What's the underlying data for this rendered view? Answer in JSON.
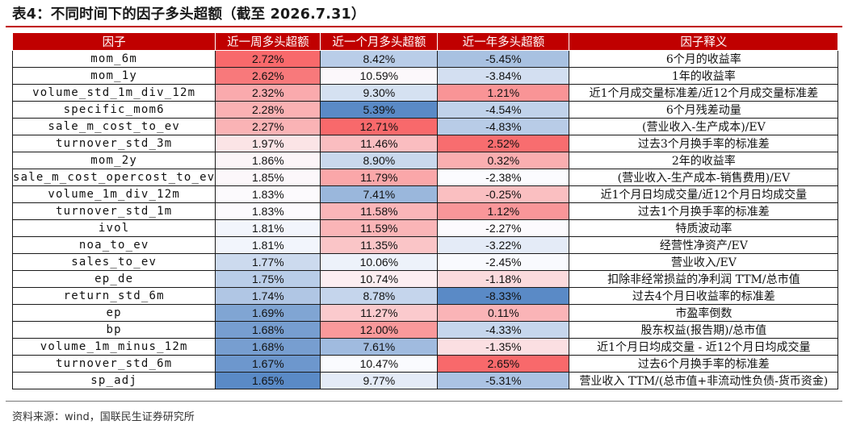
{
  "title": "表4：不同时间下的因子多头超额（截至 2026.7.31）",
  "headers": [
    "因子",
    "近一周多头超额",
    "近一个月多头超额",
    "近一年多头超额",
    "因子释义"
  ],
  "rows": [
    {
      "factor": "mom_6m",
      "week": "2.72%",
      "month": "8.42%",
      "year": "-5.45%",
      "desc": "6个月的收益率"
    },
    {
      "factor": "mom_1y",
      "week": "2.62%",
      "month": "10.59%",
      "year": "-3.84%",
      "desc": "1年的收益率"
    },
    {
      "factor": "volume_std_1m_div_12m",
      "week": "2.32%",
      "month": "9.30%",
      "year": "1.21%",
      "desc": "近1个月成交量标准差/近12个月成交量标准差"
    },
    {
      "factor": "specific_mom6",
      "week": "2.28%",
      "month": "5.39%",
      "year": "-4.54%",
      "desc": "6个月残差动量"
    },
    {
      "factor": "sale_m_cost_to_ev",
      "week": "2.27%",
      "month": "12.71%",
      "year": "-4.83%",
      "desc": "(营业收入-生产成本)/EV"
    },
    {
      "factor": "turnover_std_3m",
      "week": "1.97%",
      "month": "11.46%",
      "year": "2.52%",
      "desc": "过去3个月换手率的标准差"
    },
    {
      "factor": "mom_2y",
      "week": "1.86%",
      "month": "8.90%",
      "year": "0.32%",
      "desc": "2年的收益率"
    },
    {
      "factor": "sale_m_cost_opercost_to_ev",
      "week": "1.85%",
      "month": "11.79%",
      "year": "-2.38%",
      "desc": "(营业收入-生产成本-销售费用)/EV"
    },
    {
      "factor": "volume_1m_div_12m",
      "week": "1.83%",
      "month": "7.41%",
      "year": "-0.25%",
      "desc": "近1个月日均成交量/近12个月日均成交量"
    },
    {
      "factor": "turnover_std_1m",
      "week": "1.83%",
      "month": "11.58%",
      "year": "1.12%",
      "desc": "过去1个月换手率的标准差"
    },
    {
      "factor": "ivol",
      "week": "1.81%",
      "month": "11.59%",
      "year": "-2.27%",
      "desc": "特质波动率"
    },
    {
      "factor": "noa_to_ev",
      "week": "1.81%",
      "month": "11.35%",
      "year": "-3.22%",
      "desc": "经营性净资产/EV"
    },
    {
      "factor": "sales_to_ev",
      "week": "1.77%",
      "month": "10.06%",
      "year": "-2.45%",
      "desc": "营业收入/EV"
    },
    {
      "factor": "ep_de",
      "week": "1.75%",
      "month": "10.74%",
      "year": "-1.18%",
      "desc": "扣除非经常损益的净利润 TTM/总市值"
    },
    {
      "factor": "return_std_6m",
      "week": "1.74%",
      "month": "8.78%",
      "year": "-8.33%",
      "desc": "过去4个月日收益率的标准差"
    },
    {
      "factor": "ep",
      "week": "1.69%",
      "month": "11.27%",
      "year": "0.11%",
      "desc": "市盈率倒数"
    },
    {
      "factor": "bp",
      "week": "1.68%",
      "month": "12.00%",
      "year": "-4.33%",
      "desc": "股东权益(报告期)/总市值"
    },
    {
      "factor": "volume_1m_minus_12m",
      "week": "1.68%",
      "month": "7.61%",
      "year": "-1.35%",
      "desc": "近1个月日均成交量 - 近12个月日均成交量"
    },
    {
      "factor": "turnover_std_6m",
      "week": "1.67%",
      "month": "10.47%",
      "year": "2.65%",
      "desc": "过去6个月换手率的标准差"
    },
    {
      "factor": "sp_adj",
      "week": "1.65%",
      "month": "9.77%",
      "year": "-5.31%",
      "desc": "营业收入 TTM/(总市值+非流动性负债-货币资金)"
    }
  ],
  "colors": {
    "header_bg": "#c00000",
    "high": "#f8696b",
    "mid": "#fcfcff",
    "low": "#5a8ac6"
  },
  "source": "资料来源：wind，国联民生证券研究所"
}
